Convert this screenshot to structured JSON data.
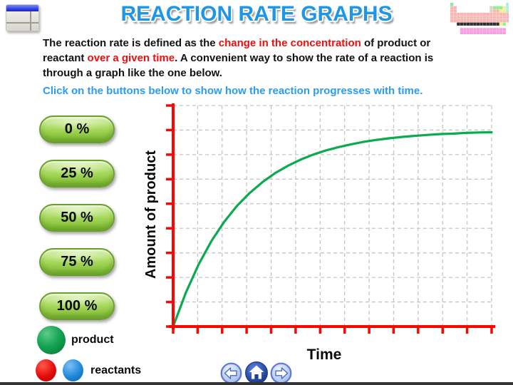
{
  "title": "REACTION RATE GRAPHS",
  "intro": {
    "lines": [
      [
        {
          "text": "The reaction rate is defined as the ",
          "color": "black"
        },
        {
          "text": "change in the concentration",
          "color": "red"
        },
        {
          "text": " of product or",
          "color": "black"
        }
      ],
      [
        {
          "text": "reactant ",
          "color": "black"
        },
        {
          "text": "over a given time",
          "color": "red"
        },
        {
          "text": ".  A convenient way to show the rate of a reaction is",
          "color": "black"
        }
      ],
      [
        {
          "text": "through a graph like the one below.",
          "color": "black"
        }
      ]
    ]
  },
  "instruction": "Click on the buttons below to show how the reaction progresses with time.",
  "buttons": [
    {
      "label": "0 %"
    },
    {
      "label": "25 %"
    },
    {
      "label": "50 %"
    },
    {
      "label": "75 %"
    },
    {
      "label": "100 %"
    }
  ],
  "legend": {
    "product_label": "product",
    "reactants_label": "reactants"
  },
  "icons": [
    "window-icon",
    "periodic-table-icon",
    "back-arrow-icon",
    "home-icon",
    "forward-arrow-icon",
    "product-sphere-icon",
    "reactant-red-sphere-icon",
    "reactant-blue-sphere-icon"
  ],
  "colors": {
    "title_blue": "#1e96e8",
    "instruction_blue": "#2b9cf2",
    "text_red": "#f20d0d",
    "axis_red": "#fb0505",
    "curve_green": "#0caa4f",
    "button_green": "#8cc63f",
    "grid_gray": "#c5c5c5"
  },
  "chart_data": {
    "type": "line",
    "title": "",
    "xlabel": "Time",
    "ylabel": "Amount of product",
    "x_axis": {
      "tick_count": 14,
      "tick_labels_shown": false
    },
    "y_axis": {
      "tick_count": 10,
      "tick_labels_shown": false
    },
    "grid": {
      "cols": 13,
      "rows": 9,
      "style": "dashed"
    },
    "legend_position": "outside bottom-left",
    "axis_color": "#fb0505",
    "series": [
      {
        "name": "product",
        "color": "#0caa4f",
        "shape": "exponential saturation rising from origin to plateau at ~88% of axis height",
        "points_normalized": [
          [
            0.0,
            0.0
          ],
          [
            0.04,
            0.154
          ],
          [
            0.08,
            0.281
          ],
          [
            0.12,
            0.386
          ],
          [
            0.16,
            0.473
          ],
          [
            0.2,
            0.545
          ],
          [
            0.24,
            0.604
          ],
          [
            0.28,
            0.653
          ],
          [
            0.32,
            0.694
          ],
          [
            0.36,
            0.727
          ],
          [
            0.4,
            0.755
          ],
          [
            0.44,
            0.778
          ],
          [
            0.48,
            0.797
          ],
          [
            0.52,
            0.812
          ],
          [
            0.56,
            0.825
          ],
          [
            0.6,
            0.836
          ],
          [
            0.64,
            0.845
          ],
          [
            0.68,
            0.852
          ],
          [
            0.72,
            0.858
          ],
          [
            0.76,
            0.863
          ],
          [
            0.8,
            0.867
          ],
          [
            0.84,
            0.871
          ],
          [
            0.88,
            0.873
          ],
          [
            0.92,
            0.876
          ],
          [
            0.96,
            0.878
          ],
          [
            1.0,
            0.879
          ]
        ]
      }
    ]
  },
  "nav": {
    "back": "previous slide",
    "home": "home",
    "forward": "next slide"
  }
}
